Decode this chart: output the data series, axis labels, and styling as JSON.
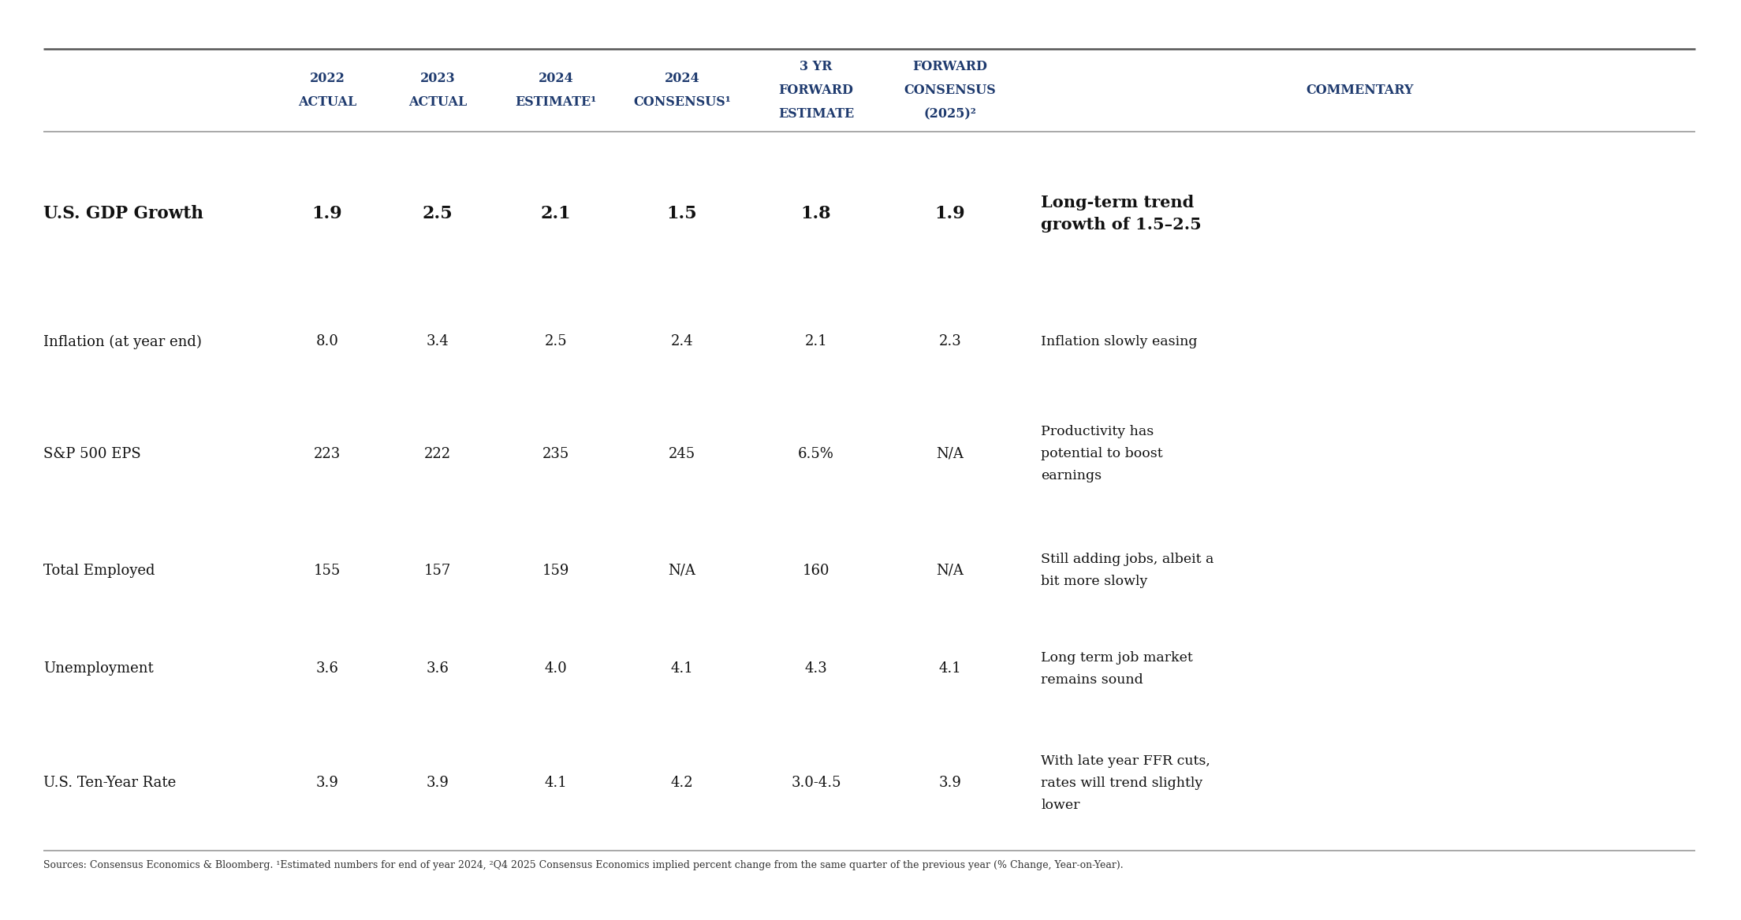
{
  "header_row": [
    "2022\nACTUAL",
    "2023\nACTUAL",
    "2024\nESTIMATE¹",
    "2024\nCONSENSUS¹",
    "3 YR\nFORWARD\nESTIMATE",
    "FORWARD\nCONSENSUS\n(2025)²",
    "COMMENTARY"
  ],
  "rows": [
    {
      "metric": "U.S. GDP Growth",
      "values": [
        "1.9",
        "2.5",
        "2.1",
        "1.5",
        "1.8",
        "1.9"
      ],
      "commentary": "Long-term trend\ngrowth of 1.5–2.5",
      "bold": true
    },
    {
      "metric": "Inflation (at year end)",
      "values": [
        "8.0",
        "3.4",
        "2.5",
        "2.4",
        "2.1",
        "2.3"
      ],
      "commentary": "Inflation slowly easing",
      "bold": false
    },
    {
      "metric": "S&P 500 EPS",
      "values": [
        "223",
        "222",
        "235",
        "245",
        "6.5%",
        "N/A"
      ],
      "commentary": "Productivity has\npotential to boost\nearnings",
      "bold": false
    },
    {
      "metric": "Total Employed",
      "values": [
        "155",
        "157",
        "159",
        "N/A",
        "160",
        "N/A"
      ],
      "commentary": "Still adding jobs, albeit a\nbit more slowly",
      "bold": false
    },
    {
      "metric": "Unemployment",
      "values": [
        "3.6",
        "3.6",
        "4.0",
        "4.1",
        "4.3",
        "4.1"
      ],
      "commentary": "Long term job market\nremains sound",
      "bold": false
    },
    {
      "metric": "U.S. Ten-Year Rate",
      "values": [
        "3.9",
        "3.9",
        "4.1",
        "4.2",
        "3.0-4.5",
        "3.9"
      ],
      "commentary": "With late year FFR cuts,\nrates will trend slightly\nlower",
      "bold": false
    }
  ],
  "footnote": "Sources: Consensus Economics & Bloomberg. ¹Estimated numbers for end of year 2024, ²Q4 2025 Consensus Economics implied percent change from the same quarter of the previous year (% Change, Year-on-Year).",
  "header_color": "#1e3a6e",
  "text_color": "#111111",
  "background_color": "#ffffff",
  "line_color": "#999999",
  "top_line_color": "#555555"
}
